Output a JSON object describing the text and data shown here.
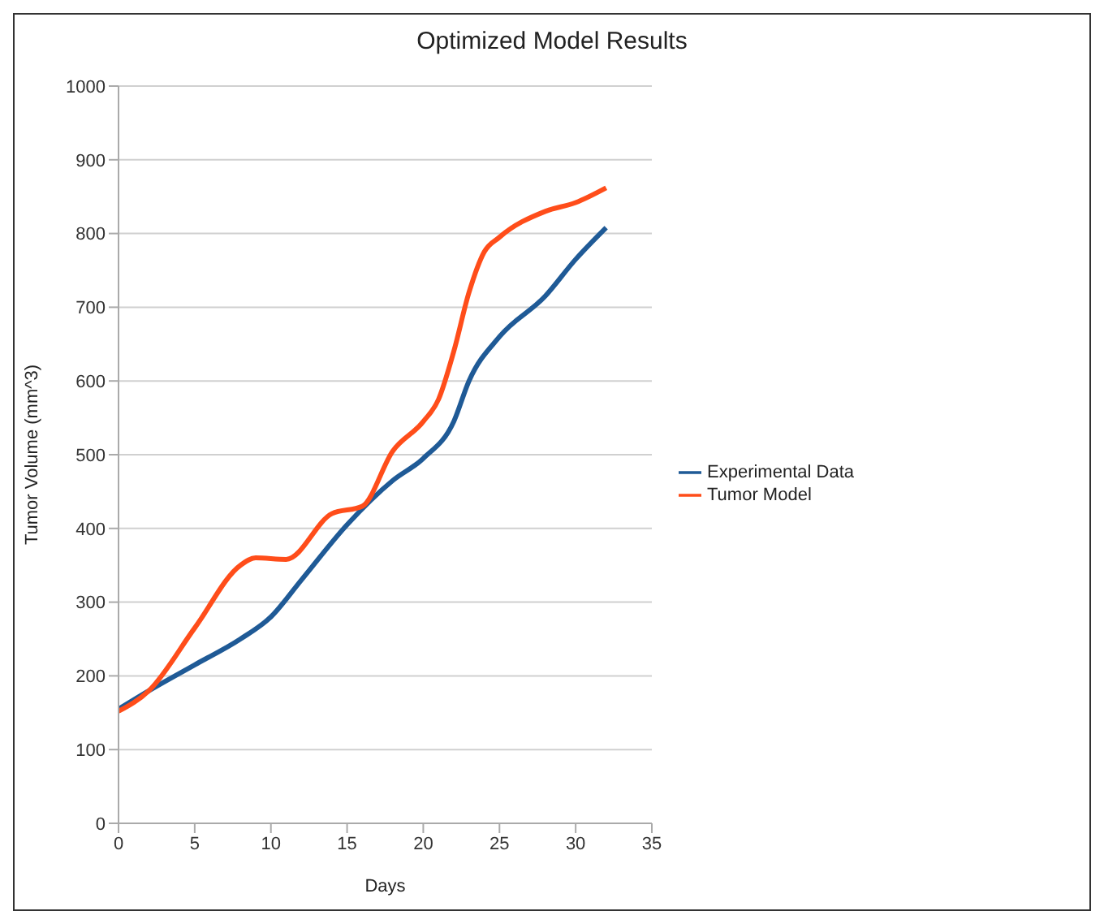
{
  "chart_data": {
    "type": "line",
    "title": "Optimized Model Results",
    "xlabel": "Days",
    "ylabel": "Tumor Volume (mm^3)",
    "xlim": [
      0,
      35
    ],
    "xticks": [
      0,
      5,
      10,
      15,
      20,
      25,
      30,
      35
    ],
    "ylim": [
      0,
      1000
    ],
    "yticks": [
      0,
      100,
      200,
      300,
      400,
      500,
      600,
      700,
      800,
      900,
      1000
    ],
    "grid": "y",
    "legend": "right",
    "marker": "none",
    "line_style": "solid",
    "series": [
      {
        "name": "Experimental Data",
        "color": "#1f5a96",
        "x": [
          0,
          2,
          5,
          8,
          10,
          12,
          15,
          18,
          20,
          22,
          23,
          25,
          28,
          30,
          32
        ],
        "values": [
          155,
          180,
          215,
          250,
          280,
          330,
          405,
          465,
          495,
          545,
          600,
          660,
          715,
          765,
          808
        ]
      },
      {
        "name": "Tumor Model",
        "color": "#ff4d1a",
        "x": [
          0,
          2,
          5,
          8,
          9,
          11,
          14,
          16,
          18,
          20,
          21,
          22,
          23,
          24,
          25,
          28,
          30,
          32
        ],
        "values": [
          152,
          180,
          265,
          350,
          360,
          358,
          420,
          430,
          505,
          545,
          575,
          640,
          720,
          775,
          795,
          830,
          842,
          862
        ]
      }
    ]
  }
}
